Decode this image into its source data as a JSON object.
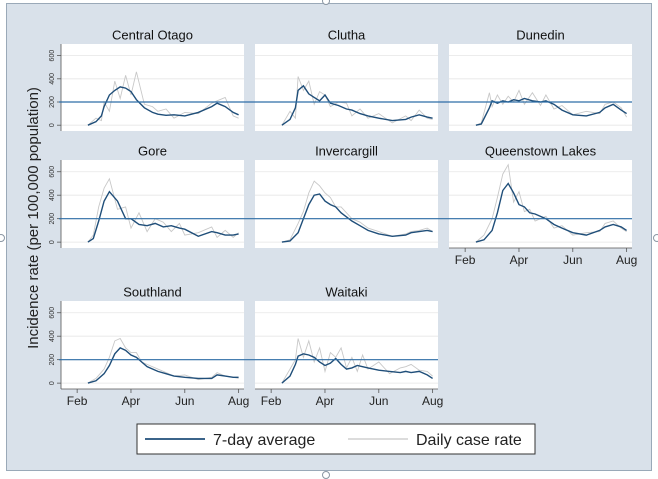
{
  "colors": {
    "frame": "#d9e1ea",
    "panel_bg": "#ffffff",
    "strip_bg": "#d9e1ea",
    "avg_line": "#1f4e79",
    "daily_line": "#c8c8c8",
    "ref_line": "#2e6ea6",
    "grid": "#e6e6e6"
  },
  "chart_data": {
    "type": "line",
    "ylabel": "Incidence rate (per 100,000 population)",
    "x_ticks": [
      "Feb",
      "Apr",
      "Jun",
      "Aug"
    ],
    "x_tick_months": [
      2,
      4,
      6,
      8
    ],
    "xlim_months": [
      1.4,
      8.2
    ],
    "y_ticks": [
      0,
      200,
      400,
      600
    ],
    "ylim": [
      -50,
      700
    ],
    "reference_line": 200,
    "legend": {
      "position": "bottom",
      "entries": [
        "7-day average",
        "Daily case rate"
      ]
    },
    "panels": [
      {
        "name": "Central Otago",
        "x": [
          2.4,
          2.7,
          2.9,
          3.0,
          3.2,
          3.4,
          3.6,
          3.8,
          4.0,
          4.2,
          4.5,
          4.8,
          5.0,
          5.3,
          5.6,
          6.0,
          6.5,
          7.0,
          7.2,
          7.5,
          7.8,
          8.0
        ],
        "avg": [
          0,
          30,
          80,
          160,
          260,
          300,
          330,
          320,
          290,
          220,
          150,
          110,
          95,
          85,
          90,
          80,
          110,
          160,
          190,
          160,
          110,
          90
        ],
        "daily": [
          0,
          60,
          40,
          200,
          120,
          380,
          230,
          430,
          260,
          460,
          180,
          160,
          120,
          140,
          60,
          110,
          100,
          190,
          210,
          240,
          80,
          60
        ]
      },
      {
        "name": "Clutha",
        "x": [
          2.4,
          2.7,
          2.9,
          3.0,
          3.2,
          3.4,
          3.6,
          3.8,
          4.0,
          4.2,
          4.5,
          4.8,
          5.0,
          5.3,
          5.6,
          6.0,
          6.5,
          7.0,
          7.2,
          7.5,
          7.8,
          8.0
        ],
        "avg": [
          0,
          50,
          150,
          300,
          340,
          270,
          240,
          210,
          260,
          190,
          170,
          140,
          130,
          100,
          80,
          60,
          40,
          50,
          70,
          90,
          70,
          60
        ],
        "daily": [
          0,
          120,
          60,
          420,
          300,
          380,
          180,
          290,
          260,
          160,
          200,
          190,
          80,
          140,
          60,
          100,
          20,
          80,
          40,
          130,
          60,
          50
        ]
      },
      {
        "name": "Dunedin",
        "x": [
          2.4,
          2.6,
          2.9,
          3.0,
          3.2,
          3.4,
          3.6,
          3.8,
          4.0,
          4.2,
          4.5,
          4.8,
          5.0,
          5.3,
          5.6,
          6.0,
          6.5,
          7.0,
          7.2,
          7.5,
          7.8,
          8.0
        ],
        "avg": [
          0,
          10,
          150,
          210,
          190,
          210,
          200,
          220,
          210,
          230,
          210,
          200,
          210,
          180,
          130,
          90,
          80,
          110,
          150,
          180,
          130,
          100
        ],
        "daily": [
          0,
          20,
          280,
          160,
          260,
          180,
          250,
          200,
          300,
          180,
          280,
          170,
          260,
          140,
          170,
          90,
          120,
          100,
          180,
          200,
          150,
          70
        ]
      },
      {
        "name": "Gore",
        "x": [
          2.4,
          2.6,
          2.8,
          3.0,
          3.2,
          3.5,
          3.8,
          4.0,
          4.3,
          4.6,
          4.9,
          5.2,
          5.5,
          5.8,
          6.0,
          6.5,
          7.0,
          7.2,
          7.5,
          7.8,
          8.0
        ],
        "avg": [
          0,
          30,
          180,
          350,
          430,
          350,
          200,
          200,
          150,
          140,
          160,
          130,
          140,
          120,
          110,
          50,
          90,
          80,
          60,
          60,
          70
        ],
        "daily": [
          0,
          60,
          300,
          460,
          540,
          280,
          300,
          120,
          250,
          90,
          200,
          170,
          90,
          160,
          60,
          80,
          130,
          40,
          100,
          40,
          80
        ]
      },
      {
        "name": "Invercargill",
        "x": [
          2.4,
          2.7,
          3.0,
          3.2,
          3.4,
          3.6,
          3.8,
          4.0,
          4.2,
          4.4,
          4.6,
          5.0,
          5.3,
          5.6,
          6.0,
          6.5,
          7.0,
          7.2,
          7.5,
          7.8,
          8.0
        ],
        "avg": [
          0,
          10,
          80,
          200,
          320,
          400,
          410,
          350,
          320,
          300,
          250,
          180,
          140,
          100,
          70,
          50,
          60,
          80,
          90,
          100,
          90
        ],
        "daily": [
          0,
          20,
          160,
          260,
          420,
          520,
          480,
          420,
          380,
          300,
          300,
          200,
          170,
          120,
          90,
          50,
          70,
          90,
          100,
          120,
          90
        ]
      },
      {
        "name": "Queenstown Lakes",
        "x": [
          2.4,
          2.7,
          3.0,
          3.2,
          3.4,
          3.6,
          3.8,
          4.0,
          4.2,
          4.4,
          4.6,
          5.0,
          5.3,
          5.6,
          6.0,
          6.5,
          7.0,
          7.2,
          7.5,
          7.8,
          8.0
        ],
        "avg": [
          0,
          20,
          100,
          250,
          440,
          500,
          420,
          320,
          300,
          250,
          240,
          200,
          150,
          120,
          80,
          60,
          100,
          130,
          150,
          130,
          100
        ],
        "daily": [
          0,
          60,
          200,
          380,
          580,
          660,
          340,
          430,
          260,
          280,
          180,
          220,
          120,
          140,
          60,
          80,
          90,
          160,
          180,
          120,
          90
        ]
      },
      {
        "name": "Southland",
        "x": [
          2.4,
          2.7,
          3.0,
          3.2,
          3.4,
          3.6,
          3.8,
          4.0,
          4.2,
          4.4,
          4.6,
          5.0,
          5.3,
          5.6,
          6.0,
          6.5,
          7.0,
          7.2,
          7.5,
          7.8,
          8.0
        ],
        "avg": [
          0,
          20,
          80,
          150,
          250,
          300,
          280,
          240,
          220,
          180,
          140,
          100,
          80,
          60,
          50,
          40,
          40,
          70,
          60,
          50,
          50
        ],
        "daily": [
          0,
          40,
          120,
          220,
          360,
          380,
          300,
          260,
          260,
          180,
          160,
          120,
          90,
          60,
          70,
          30,
          50,
          90,
          60,
          50,
          40
        ]
      },
      {
        "name": "Waitaki",
        "x": [
          2.4,
          2.7,
          2.9,
          3.0,
          3.2,
          3.4,
          3.6,
          3.8,
          4.0,
          4.2,
          4.4,
          4.6,
          4.8,
          5.0,
          5.2,
          5.4,
          5.6,
          6.0,
          6.4,
          6.8,
          7.0,
          7.2,
          7.5,
          7.8,
          8.0
        ],
        "avg": [
          0,
          60,
          160,
          230,
          250,
          240,
          220,
          180,
          150,
          170,
          210,
          160,
          120,
          130,
          150,
          140,
          130,
          110,
          100,
          90,
          100,
          90,
          100,
          70,
          40
        ],
        "daily": [
          0,
          120,
          200,
          380,
          220,
          360,
          180,
          300,
          100,
          260,
          220,
          300,
          130,
          220,
          100,
          240,
          120,
          180,
          80,
          130,
          140,
          160,
          110,
          100,
          60
        ]
      }
    ]
  }
}
